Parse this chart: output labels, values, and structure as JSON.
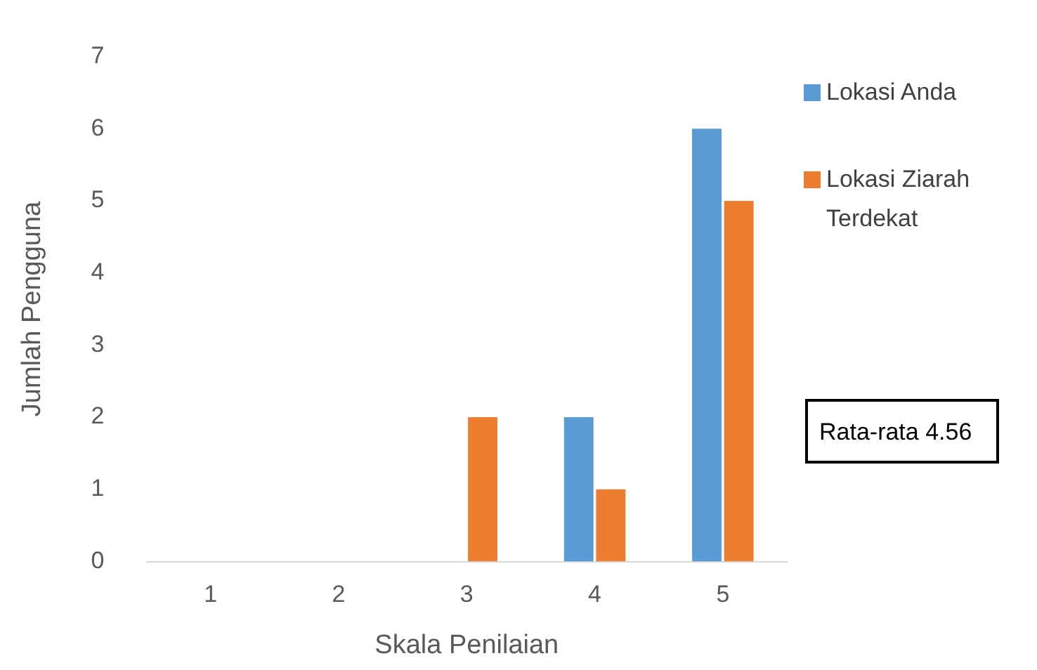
{
  "chart_data": {
    "type": "bar",
    "xlabel": "Skala Penilaian",
    "ylabel": "Jumlah Pengguna",
    "categories": [
      "1",
      "2",
      "3",
      "4",
      "5"
    ],
    "series": [
      {
        "name": "Lokasi Anda",
        "color": "#5b9bd5",
        "values": [
          0,
          0,
          0,
          2,
          6
        ]
      },
      {
        "name": "Lokasi Ziarah Terdekat",
        "color": "#ed7d31",
        "values": [
          0,
          0,
          2,
          1,
          5
        ]
      }
    ],
    "ylim": [
      0,
      7
    ],
    "yticks": [
      0,
      1,
      2,
      3,
      4,
      5,
      6,
      7
    ],
    "grid": false,
    "legend": "right",
    "annotations": [
      "Rata-rata 4.56"
    ]
  }
}
